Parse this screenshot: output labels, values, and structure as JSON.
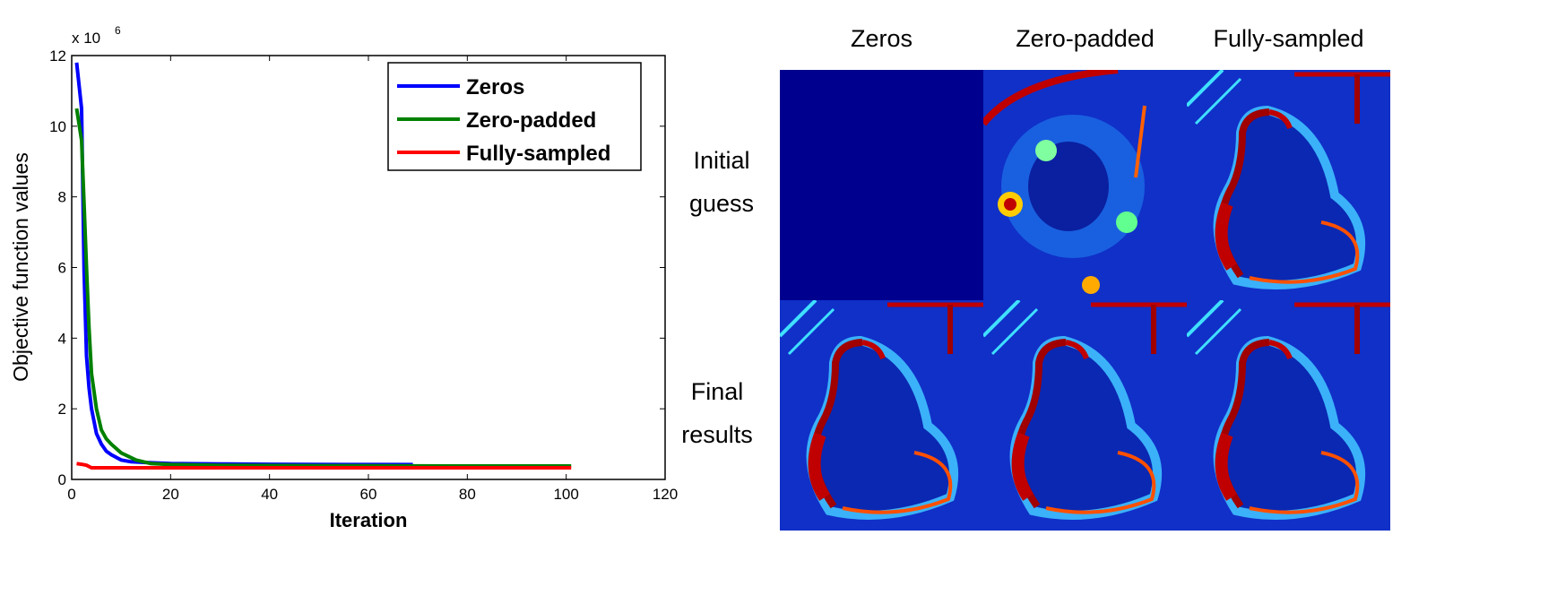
{
  "chart_data": {
    "type": "line",
    "title": "",
    "xlabel": "Iteration",
    "ylabel": "Objective function values",
    "y_multiplier_label": "x 10",
    "y_multiplier_exponent": "6",
    "xlim": [
      0,
      120
    ],
    "ylim": [
      0,
      12
    ],
    "xticks": [
      0,
      20,
      40,
      60,
      80,
      100,
      120
    ],
    "yticks": [
      0,
      2,
      4,
      6,
      8,
      10,
      12
    ],
    "grid": false,
    "legend_position": "top-right",
    "series": [
      {
        "name": "Zeros",
        "color": "#0000ff",
        "x": [
          1,
          2,
          2.5,
          3,
          3.5,
          4,
          5,
          6,
          7,
          8,
          10,
          12,
          15,
          20,
          30,
          40,
          60,
          69
        ],
        "y": [
          11.8,
          10.5,
          5.9,
          3.5,
          2.6,
          2.0,
          1.3,
          1.0,
          0.8,
          0.7,
          0.55,
          0.5,
          0.48,
          0.45,
          0.44,
          0.43,
          0.42,
          0.42
        ]
      },
      {
        "name": "Zero-padded",
        "color": "#008000",
        "x": [
          1,
          2,
          2.5,
          3,
          3.5,
          4,
          5,
          6,
          7,
          8,
          10,
          13,
          16,
          20,
          30,
          50,
          80,
          101
        ],
        "y": [
          10.5,
          9.6,
          7.8,
          6.0,
          4.3,
          3.0,
          2.0,
          1.4,
          1.15,
          1.0,
          0.75,
          0.55,
          0.45,
          0.42,
          0.4,
          0.39,
          0.38,
          0.38
        ]
      },
      {
        "name": "Fully-sampled",
        "color": "#ff0000",
        "x": [
          1,
          2,
          3,
          4,
          10,
          50,
          101
        ],
        "y": [
          0.45,
          0.43,
          0.4,
          0.33,
          0.33,
          0.33,
          0.33
        ]
      }
    ]
  },
  "image_grid": {
    "columns": [
      "Zeros",
      "Zero-padded",
      "Fully-sampled"
    ],
    "rows": [
      {
        "label_line1": "Initial",
        "label_line2": "guess"
      },
      {
        "label_line1": "Final",
        "label_line2": "results"
      }
    ],
    "colormap": "jet"
  }
}
